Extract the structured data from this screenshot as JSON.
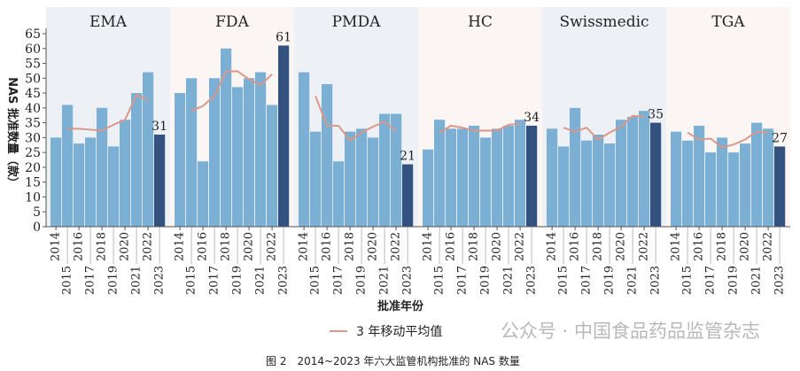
{
  "chart_data": {
    "type": "bar",
    "ylabel": "NAS 批准数量（款）",
    "xlabel": "批准年份",
    "ylim": [
      0,
      65
    ],
    "yticks": [
      0,
      5,
      10,
      15,
      20,
      25,
      30,
      35,
      40,
      45,
      50,
      55,
      60,
      65
    ],
    "categories": [
      "2014",
      "2015",
      "2016",
      "2017",
      "2018",
      "2019",
      "2020",
      "2021",
      "2022",
      "2023"
    ],
    "legend": {
      "label": "3 年移动平均值",
      "placement": "bottom"
    },
    "colors": {
      "bar": "#7bafd4",
      "highlight": "#34527f",
      "line": "#d9988a",
      "panel_a": "#edf1f5",
      "panel_b": "#fbf6f4"
    },
    "panels": [
      {
        "name": "EMA",
        "values": [
          30,
          41,
          28,
          30,
          40,
          27,
          36,
          45,
          52,
          31
        ],
        "label": "31"
      },
      {
        "name": "FDA",
        "values": [
          45,
          50,
          22,
          50,
          60,
          47,
          50,
          52,
          41,
          61
        ],
        "label": "61"
      },
      {
        "name": "PMDA",
        "values": [
          52,
          32,
          48,
          22,
          32,
          33,
          30,
          38,
          38,
          21
        ],
        "label": "21"
      },
      {
        "name": "HC",
        "values": [
          26,
          36,
          33,
          33,
          34,
          30,
          33,
          34,
          36,
          34
        ],
        "label": "34"
      },
      {
        "name": "Swissmedic",
        "values": [
          33,
          27,
          40,
          29,
          31,
          28,
          36,
          37,
          39,
          35
        ],
        "label": "35"
      },
      {
        "name": "TGA",
        "values": [
          32,
          29,
          34,
          25,
          30,
          25,
          28,
          35,
          33,
          27
        ],
        "label": "27"
      }
    ]
  },
  "caption": "图 2　2014~2023 年六大监管机构批准的 NAS 数量",
  "watermark": "公众号 · 中国食品药品监管杂志"
}
